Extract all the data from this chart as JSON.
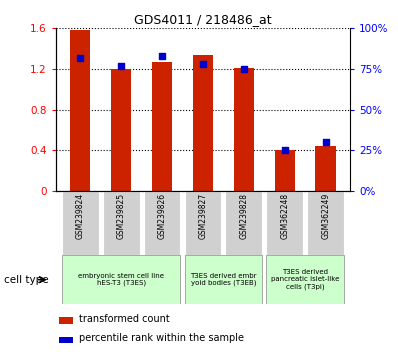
{
  "title": "GDS4011 / 218486_at",
  "samples": [
    "GSM239824",
    "GSM239825",
    "GSM239826",
    "GSM239827",
    "GSM239828",
    "GSM362248",
    "GSM362249"
  ],
  "transformed_count": [
    1.585,
    1.205,
    1.27,
    1.34,
    1.21,
    0.405,
    0.445
  ],
  "percentile_rank": [
    82,
    77,
    83,
    78,
    75,
    25,
    30
  ],
  "bar_color": "#cc2200",
  "dot_color": "#0000cc",
  "ylim_left": [
    0,
    1.6
  ],
  "ylim_right": [
    0,
    100
  ],
  "yticks_left": [
    0,
    0.4,
    0.8,
    1.2,
    1.6
  ],
  "yticks_right": [
    0,
    25,
    50,
    75,
    100
  ],
  "ytick_labels_left": [
    "0",
    "0.4",
    "0.8",
    "1.2",
    "1.6"
  ],
  "ytick_labels_right": [
    "0%",
    "25%",
    "50%",
    "75%",
    "100%"
  ],
  "group_ranges": [
    [
      0,
      2,
      "embryonic stem cell line\nhES-T3 (T3ES)"
    ],
    [
      3,
      4,
      "T3ES derived embr\nyoid bodies (T3EB)"
    ],
    [
      5,
      6,
      "T3ES derived\npancreatic islet-like\ncells (T3pi)"
    ]
  ],
  "legend_labels": [
    "transformed count",
    "percentile rank within the sample"
  ],
  "legend_colors": [
    "#cc2200",
    "#0000cc"
  ],
  "cell_type_label": "cell type",
  "bg_xticklabels": "#d0d0d0",
  "cell_bg": "#ccffcc",
  "bar_width": 0.5
}
